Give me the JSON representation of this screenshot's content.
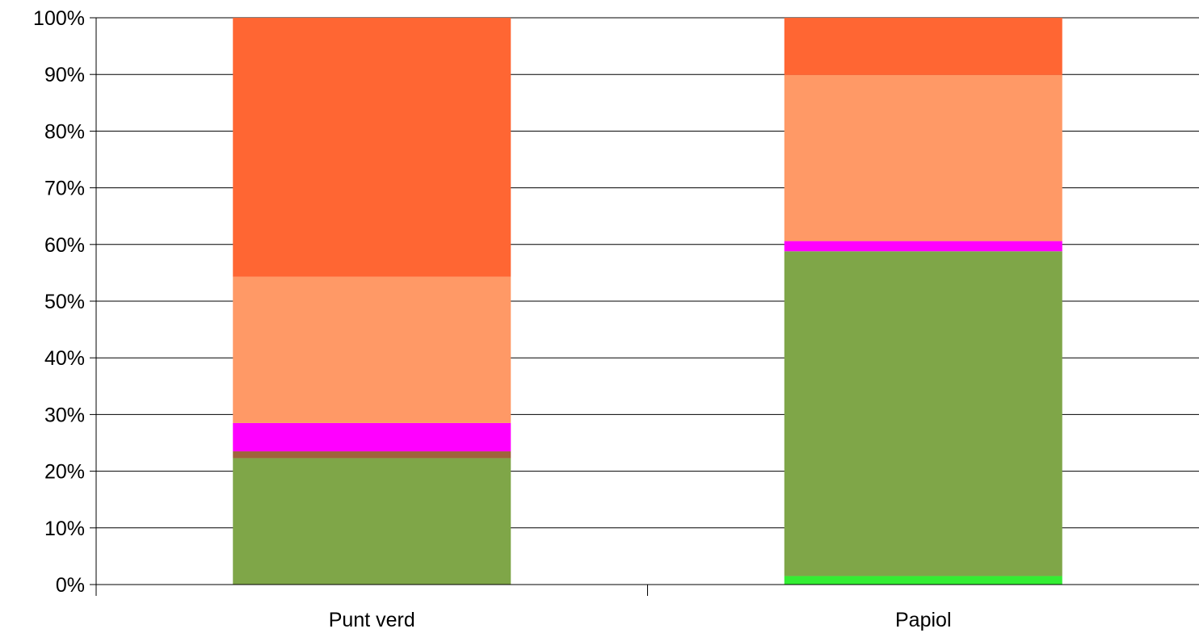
{
  "chart_data": {
    "type": "bar",
    "stacked": true,
    "normalized": true,
    "title": "",
    "xlabel": "",
    "ylabel": "",
    "ylim": [
      0,
      100
    ],
    "yticks": [
      "0%",
      "10%",
      "20%",
      "30%",
      "40%",
      "50%",
      "60%",
      "70%",
      "80%",
      "90%",
      "100%"
    ],
    "categories": [
      "Punt verd",
      "Papiol"
    ],
    "grid": true,
    "legend": "none",
    "series": [
      {
        "color": "#33ee33",
        "values": [
          0.0,
          1.5
        ]
      },
      {
        "color": "#7fa648",
        "values": [
          22.3,
          57.3
        ]
      },
      {
        "color": "#a0633c",
        "values": [
          1.2,
          0.0
        ]
      },
      {
        "color": "#ff00ff",
        "values": [
          5.0,
          1.8
        ]
      },
      {
        "color": "#ff9966",
        "values": [
          25.8,
          29.3
        ]
      },
      {
        "color": "#ff6633",
        "values": [
          45.7,
          10.1
        ]
      }
    ]
  }
}
